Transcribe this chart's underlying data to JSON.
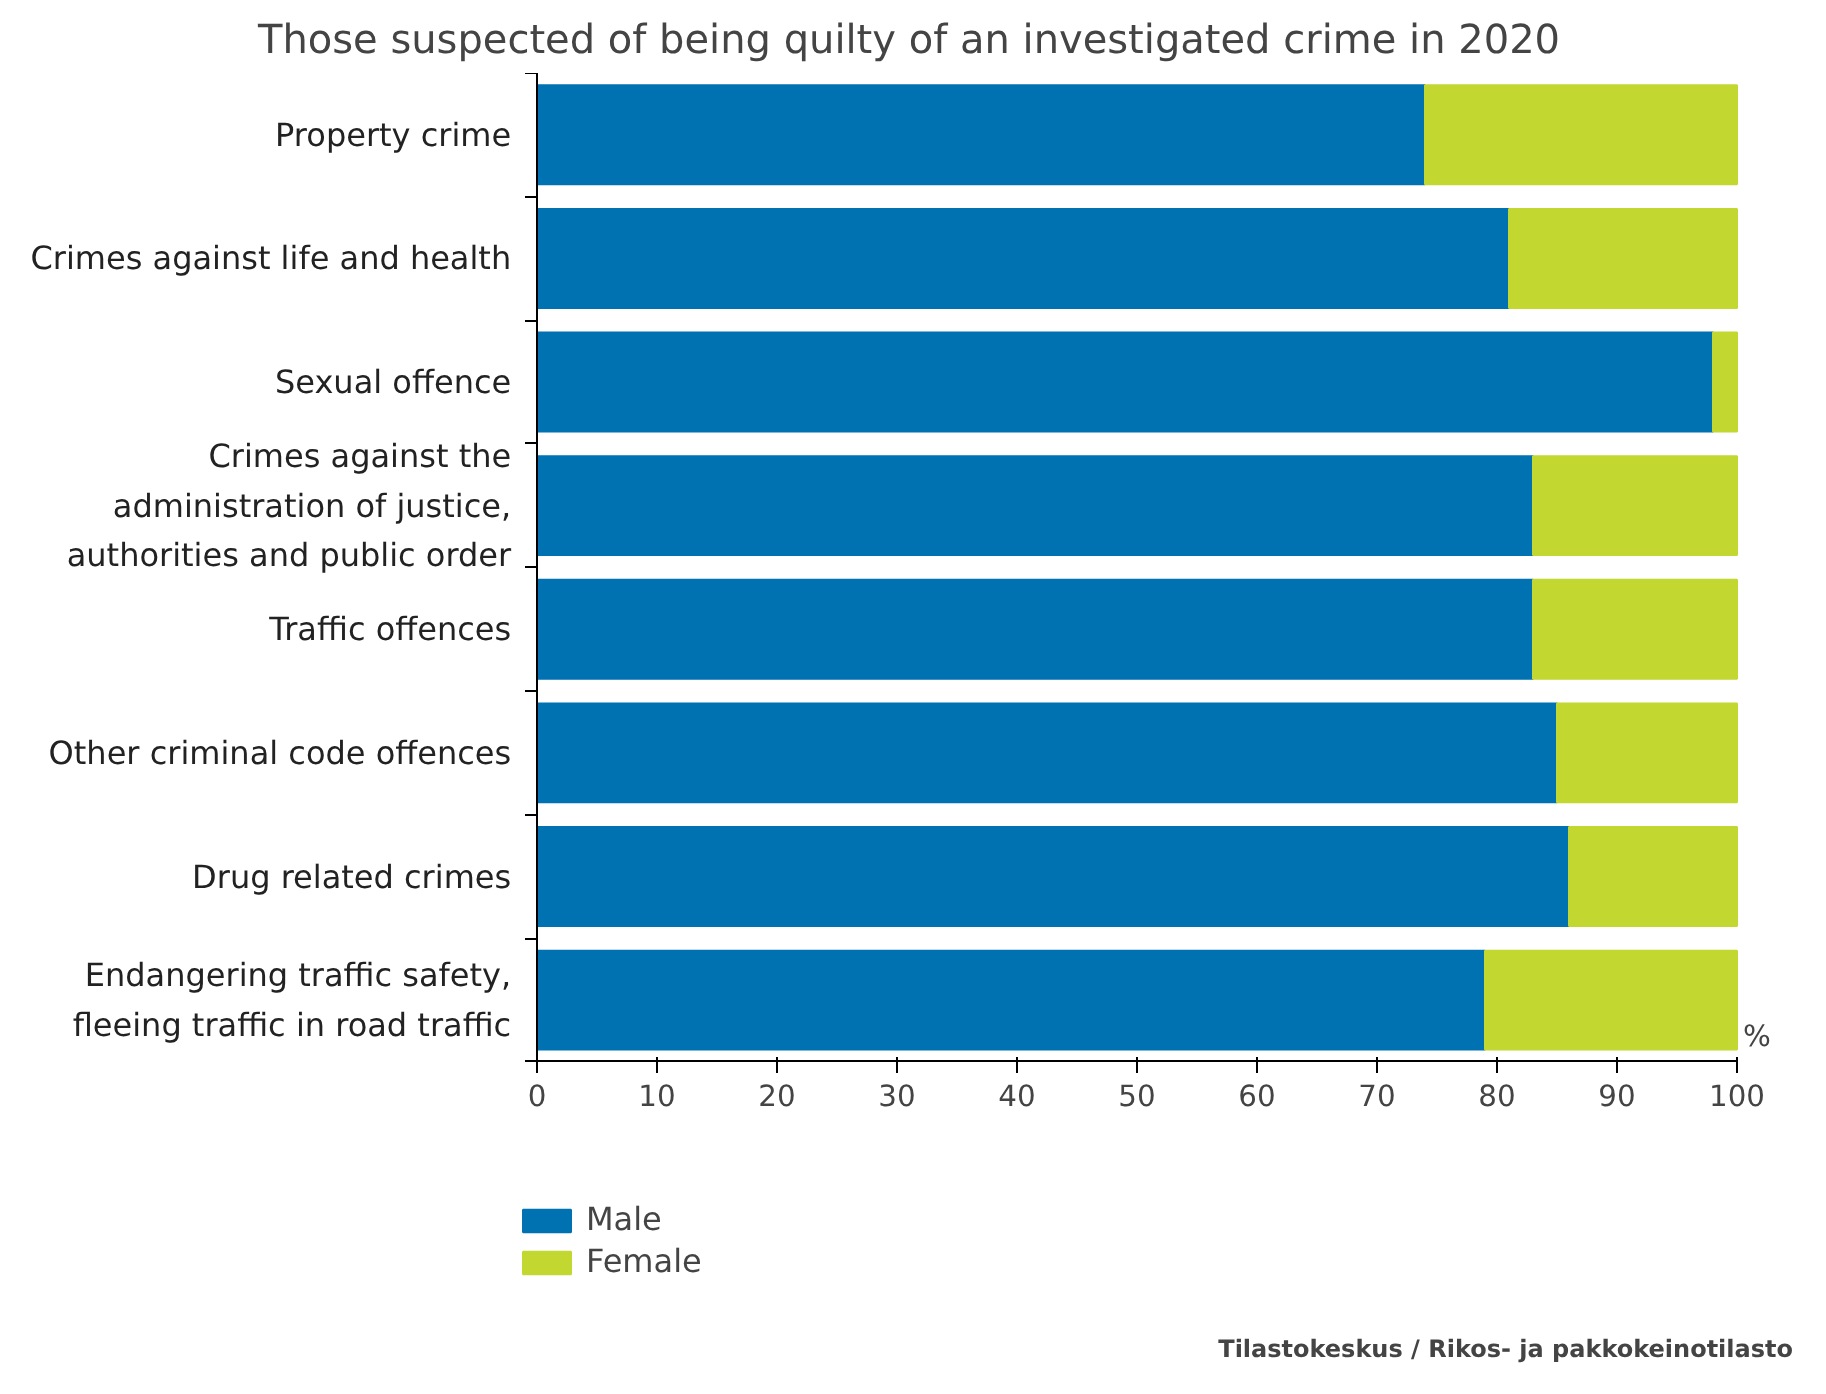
{
  "chart_data": {
    "type": "bar",
    "orientation": "horizontal",
    "stacked": true,
    "title": "Those suspected of being quilty of an investigated crime in 2020",
    "xlabel": "%",
    "categories": [
      "Property crime",
      "Crimes against life and health",
      "Sexual offence",
      "Crimes against the administration of justice, authorities and public order",
      "Traffic offences",
      "Other criminal code offences",
      "Drug related crimes",
      "Endangering traffic safety, fleeing traffic in road traffic"
    ],
    "series": [
      {
        "name": "Male",
        "color": "#0072b2",
        "values": [
          74,
          81,
          98,
          83,
          83,
          85,
          86,
          79
        ]
      },
      {
        "name": "Female",
        "color": "#c2d830",
        "values": [
          26,
          19,
          2,
          17,
          17,
          15,
          14,
          21
        ]
      }
    ],
    "xlim": [
      0,
      100
    ],
    "xticks": [
      0,
      10,
      20,
      30,
      40,
      50,
      60,
      70,
      80,
      90,
      100
    ],
    "grid": false,
    "legend": "bottom left",
    "annotations": [
      "Tilastokeskus / Rikos- ja pakkokeinotilasto"
    ]
  }
}
